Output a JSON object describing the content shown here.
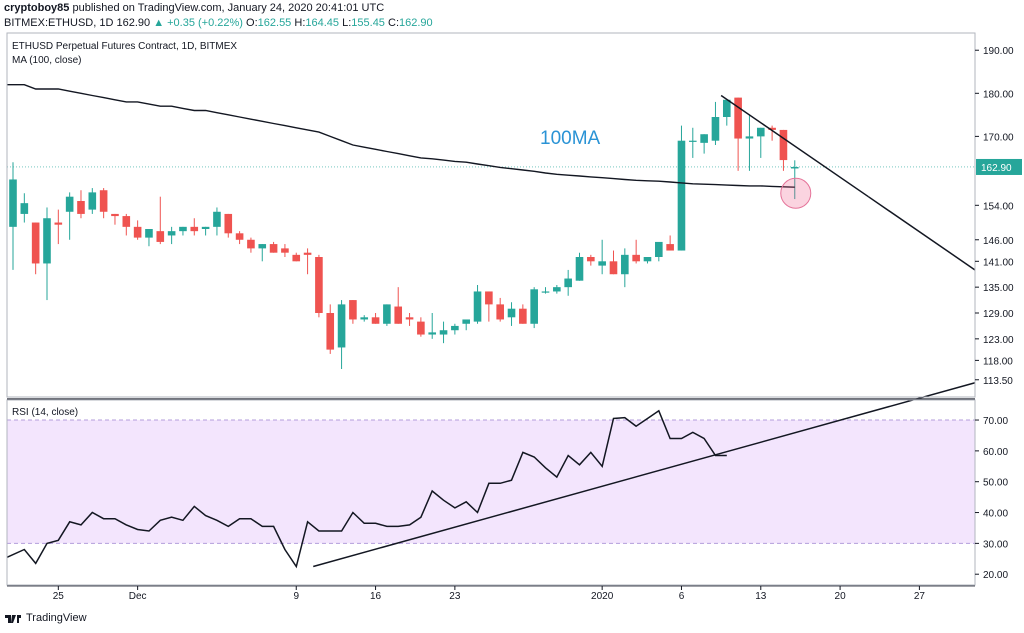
{
  "header": {
    "author": "cryptoboy85",
    "published_text": "published on TradingView.com, January 24, 2020 20:41:01 UTC",
    "symbol": "BITMEX:ETHUSD, 1D",
    "last": "162.90",
    "change": "▲ +0.35 (+0.22%)",
    "o_label": "O:",
    "o_val": "162.55",
    "h_label": "H:",
    "h_val": "164.45",
    "l_label": "L:",
    "l_val": "155.45",
    "c_label": "C:",
    "c_val": "162.90"
  },
  "footer": {
    "brand": "TradingView"
  },
  "colors": {
    "up": "#26a69a",
    "down": "#ef5350",
    "ma": "#131722",
    "ma_label": "#2a93d5",
    "rsi_band": "#f3e5fd"
  },
  "chart_data": [
    {
      "type": "candlestick",
      "title": "ETHUSD Perpetual Futures Contract, 1D, BITMEX",
      "indicator_label": "MA (100, close)",
      "ma_annotation": "100MA",
      "last_price_label": "162.90",
      "y_ticks": [
        "190.00",
        "180.00",
        "170.00",
        "162.90",
        "154.00",
        "146.00",
        "141.00",
        "135.00",
        "129.00",
        "123.00",
        "118.00",
        "113.50"
      ],
      "y_tick_values": [
        190,
        180,
        170,
        162.9,
        154,
        146,
        141,
        135,
        129,
        123,
        118,
        113.5
      ],
      "ylim": [
        109.5,
        194
      ],
      "x_labels": [
        "25",
        "Dec",
        "9",
        "16",
        "23",
        "2020",
        "6",
        "13",
        "20",
        "27"
      ],
      "x_label_index": [
        4,
        11,
        25,
        32,
        39,
        52,
        59,
        66,
        73,
        80
      ],
      "candles": [
        [
          149.0,
          164.0,
          139.0,
          160.0
        ],
        [
          152.0,
          156.8,
          150.0,
          154.5
        ],
        [
          150.0,
          150.0,
          138.0,
          140.5
        ],
        [
          140.5,
          153.5,
          132.0,
          151.0
        ],
        [
          150.0,
          153.0,
          145.0,
          149.5
        ],
        [
          152.5,
          157.0,
          146.0,
          156.0
        ],
        [
          155.0,
          157.5,
          151.0,
          152.0
        ],
        [
          153.0,
          158.0,
          152.0,
          157.0
        ],
        [
          157.5,
          158.0,
          151.0,
          152.5
        ],
        [
          152.0,
          152.0,
          149.5,
          151.5
        ],
        [
          151.5,
          152.0,
          147.0,
          149.0
        ],
        [
          149.0,
          150.5,
          146.0,
          146.5
        ],
        [
          146.5,
          148.0,
          144.5,
          148.5
        ],
        [
          148.0,
          156.0,
          145.0,
          145.5
        ],
        [
          147.0,
          149.0,
          145.0,
          148.0
        ],
        [
          148.0,
          149.0,
          147.0,
          149.0
        ],
        [
          149.0,
          151.0,
          147.0,
          148.0
        ],
        [
          148.5,
          149.0,
          147.0,
          149.0
        ],
        [
          149.0,
          153.5,
          147.0,
          152.5
        ],
        [
          152.0,
          152.0,
          146.5,
          147.5
        ],
        [
          147.5,
          148.0,
          145.0,
          146.0
        ],
        [
          146.0,
          146.5,
          143.0,
          144.0
        ],
        [
          144.0,
          145.0,
          141.0,
          145.0
        ],
        [
          145.0,
          145.5,
          143.0,
          143.0
        ],
        [
          144.0,
          145.0,
          142.0,
          143.0
        ],
        [
          142.5,
          143.0,
          141.0,
          141.0
        ],
        [
          143.0,
          144.0,
          138.0,
          142.5
        ],
        [
          142.0,
          142.5,
          128.0,
          129.0
        ],
        [
          129.0,
          131.0,
          119.5,
          120.5
        ],
        [
          121.0,
          132.0,
          116.0,
          131.0
        ],
        [
          132.0,
          132.0,
          126.5,
          127.5
        ],
        [
          127.5,
          128.5,
          127.0,
          128.0
        ],
        [
          128.0,
          129.0,
          126.5,
          126.5
        ],
        [
          126.5,
          131.0,
          126.0,
          131.0
        ],
        [
          130.5,
          135.0,
          126.5,
          126.5
        ],
        [
          128.0,
          129.0,
          126.0,
          127.5
        ],
        [
          127.0,
          128.0,
          123.5,
          124.0
        ],
        [
          124.0,
          129.0,
          123.0,
          124.5
        ],
        [
          124.0,
          127.0,
          122.0,
          125.0
        ],
        [
          125.0,
          126.5,
          124.0,
          126.0
        ],
        [
          126.5,
          127.0,
          125.0,
          127.5
        ],
        [
          127.0,
          135.5,
          126.5,
          134.0
        ],
        [
          134.0,
          134.0,
          127.0,
          131.0
        ],
        [
          131.0,
          132.5,
          127.0,
          127.5
        ],
        [
          128.0,
          131.5,
          126.0,
          130.0
        ],
        [
          130.0,
          131.0,
          126.5,
          126.5
        ],
        [
          126.5,
          135.0,
          125.5,
          134.5
        ],
        [
          134.0,
          135.0,
          133.5,
          134.0
        ],
        [
          134.0,
          135.5,
          133.5,
          135.0
        ],
        [
          135.0,
          139.0,
          133.0,
          137.0
        ],
        [
          136.5,
          143.0,
          136.5,
          142.0
        ],
        [
          142.0,
          142.5,
          140.0,
          141.0
        ],
        [
          140.0,
          146.0,
          138.0,
          141.0
        ],
        [
          141.0,
          143.5,
          138.0,
          138.0
        ],
        [
          138.0,
          144.0,
          135.0,
          142.5
        ],
        [
          142.5,
          146.0,
          140.5,
          141.0
        ],
        [
          141.0,
          142.0,
          140.5,
          142.0
        ],
        [
          142.0,
          145.0,
          141.0,
          145.5
        ],
        [
          145.0,
          147.0,
          143.5,
          143.5
        ],
        [
          143.5,
          172.5,
          143.5,
          169.0
        ],
        [
          169.0,
          172.0,
          165.0,
          169.0
        ],
        [
          168.5,
          170.5,
          166.0,
          170.5
        ],
        [
          169.0,
          178.0,
          168.0,
          174.5
        ],
        [
          174.5,
          178.0,
          172.5,
          178.5
        ],
        [
          179.0,
          179.0,
          162.0,
          169.5
        ],
        [
          169.5,
          175.0,
          162.0,
          170.0
        ],
        [
          170.0,
          172.0,
          165.0,
          172.0
        ],
        [
          172.0,
          172.5,
          169.0,
          171.5
        ],
        [
          171.5,
          171.5,
          162.0,
          164.5
        ],
        [
          162.55,
          164.45,
          155.45,
          162.9
        ]
      ],
      "ma_100": [
        182,
        182,
        181,
        181,
        181,
        180.5,
        180,
        179.5,
        179,
        178.5,
        178,
        178,
        177.5,
        177,
        177,
        176.5,
        176,
        176,
        175.5,
        175,
        174.5,
        174,
        173.5,
        173,
        172.5,
        172,
        171.5,
        171,
        170,
        169,
        168,
        167.5,
        167,
        166.5,
        166,
        165.5,
        165,
        164.8,
        164.5,
        164.2,
        164,
        163.6,
        163.2,
        162.8,
        162.5,
        162.2,
        161.9,
        161.5,
        161.2,
        161,
        160.8,
        160.6,
        160.4,
        160.2,
        160,
        159.8,
        159.7,
        159.6,
        159.4,
        159.2,
        159,
        158.9,
        158.8,
        158.7,
        158.6,
        158.5,
        158.5,
        158.4,
        158.3,
        158.2
      ],
      "trendline": {
        "start": [
          62.5,
          179.5
        ],
        "end": [
          75.5,
          156.0
        ]
      }
    },
    {
      "type": "line",
      "title": "RSI (14, close)",
      "y_ticks": [
        "70.00",
        "60.00",
        "50.00",
        "40.00",
        "30.00",
        "20.00"
      ],
      "y_tick_values": [
        70,
        60,
        50,
        40,
        30,
        20
      ],
      "ylim": [
        16.5,
        76.5
      ],
      "band": [
        30,
        70
      ],
      "rsi": [
        25.5,
        28.0,
        23.5,
        30.0,
        31.0,
        37.0,
        36.0,
        40.0,
        38.0,
        38.0,
        36.0,
        34.5,
        34.0,
        37.5,
        38.5,
        37.5,
        42.0,
        39.0,
        37.5,
        35.5,
        38.0,
        38.0,
        35.5,
        35.5,
        28.0,
        22.5,
        37.0,
        34.0,
        34.0,
        34.0,
        40.0,
        36.5,
        36.5,
        35.5,
        35.5,
        36.0,
        38.5,
        47.0,
        44.0,
        41.5,
        43.5,
        40.0,
        49.5,
        49.5,
        50.5,
        59.5,
        58.0,
        54.5,
        51.5,
        58.5,
        55.5,
        59.5,
        55.0,
        70.5,
        70.8,
        68.0,
        70.5,
        73.0,
        64.0,
        64.0,
        66.0,
        64.0,
        58.5,
        58.5
      ],
      "trendline": {
        "start": [
          26.5,
          22.5
        ],
        "end": [
          75.5,
          72.5
        ]
      }
    }
  ]
}
